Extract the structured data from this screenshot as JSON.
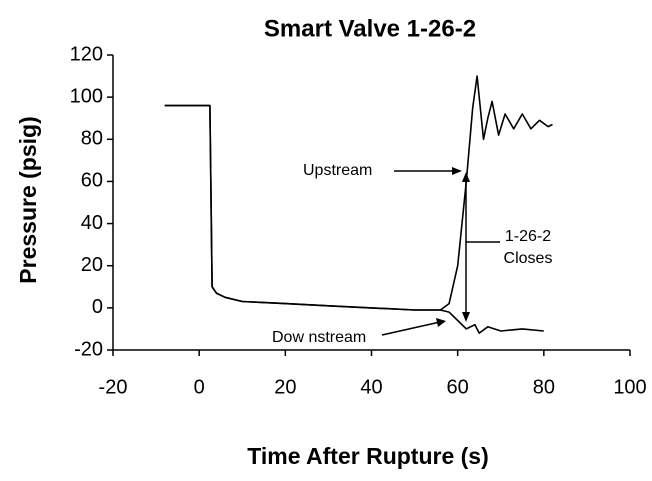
{
  "chart_data": {
    "type": "line",
    "title": "Smart Valve 1-26-2",
    "x_label": "Time After Rupture (s)",
    "y_label": "Pressure (psig)",
    "annotations": [
      "Upstream",
      "Dow nstream",
      "1-26-2",
      "Closes"
    ],
    "series": [
      {
        "name": "Upstream",
        "color": "#000000",
        "x": [
          -8,
          2.5,
          3,
          4,
          6,
          10,
          20,
          30,
          40,
          50,
          56,
          58,
          60,
          62,
          63.5,
          64.5,
          65,
          66,
          67,
          68,
          69.5,
          71,
          73,
          75,
          77,
          79,
          81,
          82
        ],
        "values": [
          96,
          96,
          10,
          7,
          5,
          3,
          2,
          1,
          0,
          -1,
          -1,
          2,
          20,
          60,
          95,
          110,
          100,
          80,
          90,
          98,
          82,
          92,
          85,
          92,
          85,
          89,
          86,
          87
        ]
      },
      {
        "name": "Downstream",
        "color": "#000000",
        "x": [
          -8,
          2.5,
          3,
          4,
          6,
          10,
          20,
          30,
          40,
          50,
          56,
          58,
          60,
          62,
          64,
          65,
          67,
          70,
          75,
          80
        ],
        "values": [
          96,
          96,
          10,
          7,
          5,
          3,
          2,
          1,
          0,
          -1,
          -1,
          -2,
          -6,
          -10,
          -8,
          -12,
          -9,
          -11,
          -10,
          -11
        ]
      }
    ],
    "xlim": [
      -20,
      100
    ],
    "xticks": [
      -20,
      0,
      20,
      40,
      60,
      80,
      100
    ],
    "ylim": [
      -20,
      120
    ],
    "yticks": [
      -20,
      0,
      20,
      40,
      60,
      80,
      100,
      120
    ],
    "grid": false
  }
}
